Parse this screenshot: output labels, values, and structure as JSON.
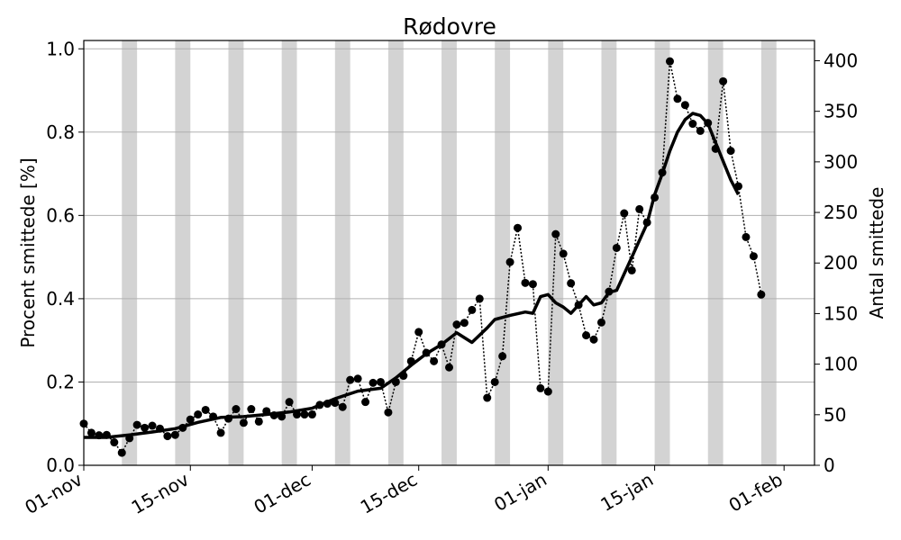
{
  "chart_data": {
    "type": "line",
    "title": "Rødovre",
    "ylabel": "Procent smittede [%]",
    "ylabel_right": "Antal smittede",
    "ylim": [
      0,
      1.02
    ],
    "ylim_right": [
      0,
      420
    ],
    "yticks": [
      {
        "value": 0.0,
        "label": "0.0"
      },
      {
        "value": 0.2,
        "label": "0.2"
      },
      {
        "value": 0.4,
        "label": "0.4"
      },
      {
        "value": 0.6,
        "label": "0.6"
      },
      {
        "value": 0.8,
        "label": "0.8"
      },
      {
        "value": 1.0,
        "label": "1.0"
      }
    ],
    "yticks_right": [
      {
        "value": 0,
        "label": "0"
      },
      {
        "value": 50,
        "label": "50"
      },
      {
        "value": 100,
        "label": "100"
      },
      {
        "value": 150,
        "label": "150"
      },
      {
        "value": 200,
        "label": "200"
      },
      {
        "value": 250,
        "label": "250"
      },
      {
        "value": 300,
        "label": "300"
      },
      {
        "value": 350,
        "label": "350"
      },
      {
        "value": 400,
        "label": "400"
      }
    ],
    "xlim": [
      "2020-11-01",
      "2021-02-05"
    ],
    "xticks": [
      {
        "date": "2020-11-01",
        "label": "01-nov"
      },
      {
        "date": "2020-11-15",
        "label": "15-nov"
      },
      {
        "date": "2020-12-01",
        "label": "01-dec"
      },
      {
        "date": "2020-12-15",
        "label": "15-dec"
      },
      {
        "date": "2021-01-01",
        "label": "01-jan"
      },
      {
        "date": "2021-01-15",
        "label": "15-jan"
      },
      {
        "date": "2021-02-01",
        "label": "01-feb"
      }
    ],
    "grid": "horizontal",
    "weekend_bands_start": [
      "2020-11-06",
      "2020-11-13",
      "2020-11-20",
      "2020-11-27",
      "2020-12-04",
      "2020-12-11",
      "2020-12-18",
      "2020-12-25",
      "2021-01-01",
      "2021-01-08",
      "2021-01-15",
      "2021-01-22",
      "2021-01-29",
      "2021-02-05"
    ],
    "series": [
      {
        "style": "dotted-markers",
        "color": "#000000",
        "points": [
          [
            "2020-11-01",
            0.1
          ],
          [
            "2020-11-02",
            0.078
          ],
          [
            "2020-11-03",
            0.072
          ],
          [
            "2020-11-04",
            0.073
          ],
          [
            "2020-11-05",
            0.055
          ],
          [
            "2020-11-06",
            0.03
          ],
          [
            "2020-11-07",
            0.065
          ],
          [
            "2020-11-08",
            0.097
          ],
          [
            "2020-11-09",
            0.09
          ],
          [
            "2020-11-10",
            0.095
          ],
          [
            "2020-11-11",
            0.088
          ],
          [
            "2020-11-12",
            0.07
          ],
          [
            "2020-11-13",
            0.073
          ],
          [
            "2020-11-14",
            0.09
          ],
          [
            "2020-11-15",
            0.11
          ],
          [
            "2020-11-16",
            0.122
          ],
          [
            "2020-11-17",
            0.133
          ],
          [
            "2020-11-18",
            0.117
          ],
          [
            "2020-11-19",
            0.078
          ],
          [
            "2020-11-20",
            0.112
          ],
          [
            "2020-11-21",
            0.135
          ],
          [
            "2020-11-22",
            0.102
          ],
          [
            "2020-11-23",
            0.135
          ],
          [
            "2020-11-24",
            0.105
          ],
          [
            "2020-11-25",
            0.13
          ],
          [
            "2020-11-26",
            0.12
          ],
          [
            "2020-11-27",
            0.117
          ],
          [
            "2020-11-28",
            0.152
          ],
          [
            "2020-11-29",
            0.122
          ],
          [
            "2020-11-30",
            0.122
          ],
          [
            "2020-12-01",
            0.122
          ],
          [
            "2020-12-02",
            0.145
          ],
          [
            "2020-12-03",
            0.148
          ],
          [
            "2020-12-04",
            0.15
          ],
          [
            "2020-12-05",
            0.14
          ],
          [
            "2020-12-06",
            0.205
          ],
          [
            "2020-12-07",
            0.208
          ],
          [
            "2020-12-08",
            0.152
          ],
          [
            "2020-12-09",
            0.198
          ],
          [
            "2020-12-10",
            0.2
          ],
          [
            "2020-12-11",
            0.127
          ],
          [
            "2020-12-12",
            0.2
          ],
          [
            "2020-12-13",
            0.215
          ],
          [
            "2020-12-14",
            0.25
          ],
          [
            "2020-12-15",
            0.32
          ],
          [
            "2020-12-16",
            0.27
          ],
          [
            "2020-12-17",
            0.25
          ],
          [
            "2020-12-18",
            0.29
          ],
          [
            "2020-12-19",
            0.235
          ],
          [
            "2020-12-20",
            0.338
          ],
          [
            "2020-12-21",
            0.342
          ],
          [
            "2020-12-22",
            0.373
          ],
          [
            "2020-12-23",
            0.4
          ],
          [
            "2020-12-24",
            0.162
          ],
          [
            "2020-12-25",
            0.2
          ],
          [
            "2020-12-26",
            0.262
          ],
          [
            "2020-12-27",
            0.488
          ],
          [
            "2020-12-28",
            0.57
          ],
          [
            "2020-12-29",
            0.438
          ],
          [
            "2020-12-30",
            0.435
          ],
          [
            "2020-12-31",
            0.185
          ],
          [
            "2021-01-01",
            0.177
          ],
          [
            "2021-01-02",
            0.555
          ],
          [
            "2021-01-03",
            0.508
          ],
          [
            "2021-01-04",
            0.437
          ],
          [
            "2021-01-05",
            0.385
          ],
          [
            "2021-01-06",
            0.312
          ],
          [
            "2021-01-07",
            0.302
          ],
          [
            "2021-01-08",
            0.343
          ],
          [
            "2021-01-09",
            0.417
          ],
          [
            "2021-01-10",
            0.522
          ],
          [
            "2021-01-11",
            0.605
          ],
          [
            "2021-01-12",
            0.468
          ],
          [
            "2021-01-13",
            0.615
          ],
          [
            "2021-01-14",
            0.583
          ],
          [
            "2021-01-15",
            0.643
          ],
          [
            "2021-01-16",
            0.703
          ],
          [
            "2021-01-17",
            0.97
          ],
          [
            "2021-01-18",
            0.88
          ],
          [
            "2021-01-19",
            0.865
          ],
          [
            "2021-01-20",
            0.82
          ],
          [
            "2021-01-21",
            0.803
          ],
          [
            "2021-01-22",
            0.822
          ],
          [
            "2021-01-23",
            0.76
          ],
          [
            "2021-01-24",
            0.922
          ],
          [
            "2021-01-25",
            0.755
          ],
          [
            "2021-01-26",
            0.67
          ],
          [
            "2021-01-27",
            0.548
          ],
          [
            "2021-01-28",
            0.502
          ],
          [
            "2021-01-29",
            0.41
          ]
        ]
      },
      {
        "style": "thick-line",
        "color": "#000000",
        "points": [
          [
            "2020-11-01",
            0.067
          ],
          [
            "2020-11-04",
            0.067
          ],
          [
            "2020-11-07",
            0.073
          ],
          [
            "2020-11-10",
            0.08
          ],
          [
            "2020-11-13",
            0.088
          ],
          [
            "2020-11-16",
            0.103
          ],
          [
            "2020-11-19",
            0.115
          ],
          [
            "2020-11-22",
            0.117
          ],
          [
            "2020-11-25",
            0.122
          ],
          [
            "2020-11-28",
            0.128
          ],
          [
            "2020-12-01",
            0.137
          ],
          [
            "2020-12-04",
            0.16
          ],
          [
            "2020-12-07",
            0.178
          ],
          [
            "2020-12-10",
            0.185
          ],
          [
            "2020-12-12",
            0.21
          ],
          [
            "2020-12-14",
            0.24
          ],
          [
            "2020-12-16",
            0.268
          ],
          [
            "2020-12-18",
            0.29
          ],
          [
            "2020-12-20",
            0.318
          ],
          [
            "2020-12-22",
            0.295
          ],
          [
            "2020-12-24",
            0.33
          ],
          [
            "2020-12-25",
            0.35
          ],
          [
            "2020-12-27",
            0.36
          ],
          [
            "2020-12-29",
            0.368
          ],
          [
            "2020-12-30",
            0.365
          ],
          [
            "2020-12-31",
            0.405
          ],
          [
            "2021-01-01",
            0.41
          ],
          [
            "2021-01-02",
            0.39
          ],
          [
            "2021-01-03",
            0.38
          ],
          [
            "2021-01-04",
            0.365
          ],
          [
            "2021-01-06",
            0.405
          ],
          [
            "2021-01-07",
            0.385
          ],
          [
            "2021-01-08",
            0.39
          ],
          [
            "2021-01-09",
            0.415
          ],
          [
            "2021-01-10",
            0.42
          ],
          [
            "2021-01-12",
            0.5
          ],
          [
            "2021-01-14",
            0.58
          ],
          [
            "2021-01-15",
            0.65
          ],
          [
            "2021-01-16",
            0.7
          ],
          [
            "2021-01-17",
            0.755
          ],
          [
            "2021-01-18",
            0.8
          ],
          [
            "2021-01-19",
            0.83
          ],
          [
            "2021-01-20",
            0.845
          ],
          [
            "2021-01-21",
            0.84
          ],
          [
            "2021-01-22",
            0.82
          ],
          [
            "2021-01-23",
            0.775
          ],
          [
            "2021-01-24",
            0.73
          ],
          [
            "2021-01-25",
            0.685
          ],
          [
            "2021-01-26",
            0.65
          ]
        ]
      }
    ]
  }
}
